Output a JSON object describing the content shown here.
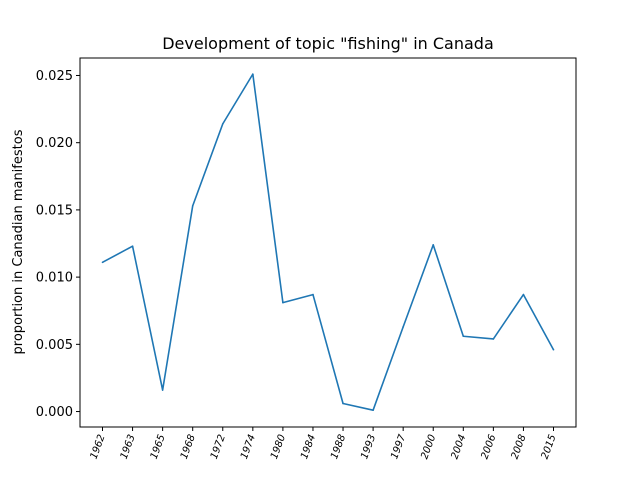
{
  "chart_data": {
    "type": "line",
    "title": "Development of topic \"fishing\" in Canada",
    "xlabel": "",
    "ylabel": "proportion in Canadian manifestos",
    "categories": [
      "1962",
      "1963",
      "1965",
      "1968",
      "1972",
      "1974",
      "1980",
      "1984",
      "1988",
      "1993",
      "1997",
      "2000",
      "2004",
      "2006",
      "2008",
      "2015"
    ],
    "series": [
      {
        "values": [
          0.0111,
          0.0123,
          0.0016,
          0.0153,
          0.0214,
          0.0251,
          0.0081,
          0.0087,
          0.0006,
          0.0001,
          0.0063,
          0.0124,
          0.0056,
          0.0054,
          0.0087,
          0.0046
        ],
        "color": "#1f77b4"
      }
    ],
    "ylim": [
      -0.00115,
      0.0263
    ],
    "yticks": [
      0.0,
      0.005,
      0.01,
      0.015,
      0.02,
      0.025
    ],
    "ytick_labels": [
      "0.000",
      "0.005",
      "0.010",
      "0.015",
      "0.020",
      "0.025"
    ],
    "grid": false,
    "legend": "none"
  }
}
